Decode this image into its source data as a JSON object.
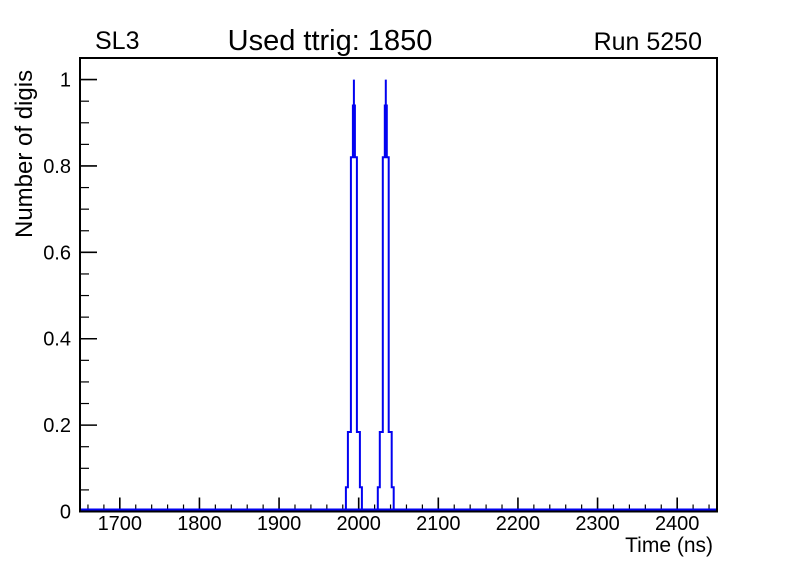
{
  "colors": {
    "background": "#ffffff",
    "frame": "#000000",
    "text": "#000000",
    "histogram_line": "#0202f0"
  },
  "header": {
    "left": "SL3",
    "title": "Used ttrig: 1850",
    "right": "Run 5250"
  },
  "chart_data": {
    "type": "line",
    "subtype": "step-histogram",
    "title": "Used ttrig: 1850",
    "left_annotation": "SL3",
    "right_annotation": "Run 5250",
    "xlabel": "Time (ns)",
    "ylabel": "Number of digis",
    "xlim": [
      1650,
      2450
    ],
    "ylim": [
      0,
      1.05
    ],
    "grid": false,
    "legend": false,
    "x_major_ticks": [
      1700,
      1800,
      1900,
      2000,
      2100,
      2200,
      2300,
      2400
    ],
    "x_tick_labels": [
      "1700",
      "1800",
      "1900",
      "2000",
      "2100",
      "2200",
      "2300",
      "2400"
    ],
    "x_minor_step": 20,
    "y_major_ticks": [
      0,
      0.2,
      0.4,
      0.6,
      0.8,
      1
    ],
    "y_tick_labels": [
      "0",
      "0.2",
      "0.4",
      "0.6",
      "0.8",
      "1"
    ],
    "y_minor_step": 0.05,
    "line_color": "#0202f0",
    "line_width": 2,
    "baseline_value": 0,
    "peaks": [
      {
        "center": 1994,
        "peak_value": 1.0,
        "base_range": [
          1984,
          2004
        ],
        "levels": [
          0.056,
          0.184,
          0.82,
          0.94,
          1.0
        ],
        "half_widths_ns": [
          10,
          7.5,
          3.75,
          1.25,
          0
        ]
      },
      {
        "center": 2034,
        "peak_value": 1.0,
        "base_range": [
          2024,
          2044
        ],
        "levels": [
          0.056,
          0.184,
          0.82,
          0.94,
          1.0
        ],
        "half_widths_ns": [
          10,
          7.5,
          3.75,
          1.25,
          0
        ]
      }
    ]
  }
}
